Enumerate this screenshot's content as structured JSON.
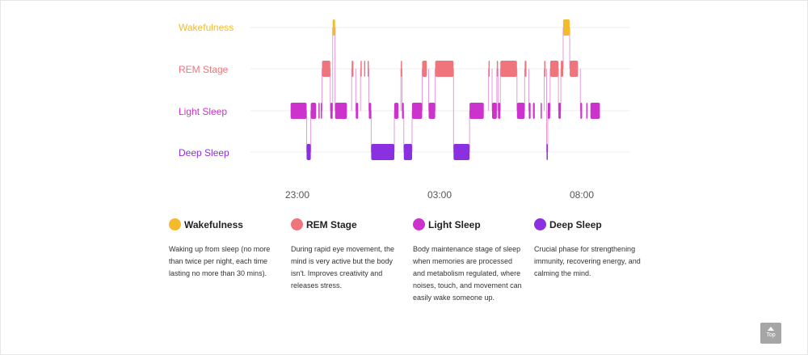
{
  "colors": {
    "wakefulness": "#f5b92c",
    "rem": "#f0747c",
    "light": "#cc33cc",
    "deep": "#8a30e0",
    "grid": "#ececec"
  },
  "chart_data": {
    "type": "hypnogram",
    "stages": [
      "Wakefulness",
      "REM Stage",
      "Light Sleep",
      "Deep Sleep"
    ],
    "x_ticks": [
      "23:00",
      "03:00",
      "08:00"
    ],
    "x_tick_minutes": [
      0,
      240,
      540
    ],
    "x_range_minutes": [
      -10,
      595
    ],
    "grid": true,
    "segments": [
      {
        "stage": "Light Sleep",
        "start": -10,
        "end": 17
      },
      {
        "stage": "Deep Sleep",
        "start": 17,
        "end": 24
      },
      {
        "stage": "Light Sleep",
        "start": 24,
        "end": 33
      },
      {
        "stage": "Light Sleep",
        "start": 37,
        "end": 39
      },
      {
        "stage": "Light Sleep",
        "start": 41,
        "end": 43
      },
      {
        "stage": "REM Stage",
        "start": 43,
        "end": 57
      },
      {
        "stage": "Light Sleep",
        "start": 57,
        "end": 61
      },
      {
        "stage": "Wakefulness",
        "start": 61,
        "end": 65
      },
      {
        "stage": "Light Sleep",
        "start": 65,
        "end": 85
      },
      {
        "stage": "REM Stage",
        "start": 93,
        "end": 96
      },
      {
        "stage": "Light Sleep",
        "start": 100,
        "end": 104
      },
      {
        "stage": "REM Stage",
        "start": 108,
        "end": 110
      },
      {
        "stage": "REM Stage",
        "start": 114,
        "end": 116
      },
      {
        "stage": "REM Stage",
        "start": 120,
        "end": 122
      },
      {
        "stage": "Light Sleep",
        "start": 122,
        "end": 126
      },
      {
        "stage": "Deep Sleep",
        "start": 126,
        "end": 165
      },
      {
        "stage": "Light Sleep",
        "start": 165,
        "end": 172
      },
      {
        "stage": "REM Stage",
        "start": 176,
        "end": 178
      },
      {
        "stage": "Light Sleep",
        "start": 178,
        "end": 181
      },
      {
        "stage": "Deep Sleep",
        "start": 181,
        "end": 195
      },
      {
        "stage": "Light Sleep",
        "start": 195,
        "end": 212
      },
      {
        "stage": "REM Stage",
        "start": 212,
        "end": 220
      },
      {
        "stage": "Light Sleep",
        "start": 223,
        "end": 234
      },
      {
        "stage": "REM Stage",
        "start": 234,
        "end": 265
      },
      {
        "stage": "Deep Sleep",
        "start": 265,
        "end": 292
      },
      {
        "stage": "Light Sleep",
        "start": 292,
        "end": 316
      },
      {
        "stage": "REM Stage",
        "start": 324,
        "end": 326
      },
      {
        "stage": "Light Sleep",
        "start": 330,
        "end": 338
      },
      {
        "stage": "REM Stage",
        "start": 338,
        "end": 340
      },
      {
        "stage": "Light Sleep",
        "start": 340,
        "end": 344
      },
      {
        "stage": "REM Stage",
        "start": 344,
        "end": 372
      },
      {
        "stage": "Light Sleep",
        "start": 372,
        "end": 385
      },
      {
        "stage": "REM Stage",
        "start": 385,
        "end": 388
      },
      {
        "stage": "Light Sleep",
        "start": 392,
        "end": 395
      },
      {
        "stage": "Light Sleep",
        "start": 399,
        "end": 402
      },
      {
        "stage": "Light Sleep",
        "start": 412,
        "end": 414
      },
      {
        "stage": "REM Stage",
        "start": 418,
        "end": 420
      },
      {
        "stage": "Deep Sleep",
        "start": 422,
        "end": 424
      },
      {
        "stage": "Light Sleep",
        "start": 424,
        "end": 428
      },
      {
        "stage": "REM Stage",
        "start": 428,
        "end": 442
      },
      {
        "stage": "Light Sleep",
        "start": 442,
        "end": 446
      },
      {
        "stage": "REM Stage",
        "start": 446,
        "end": 450
      },
      {
        "stage": "Wakefulness",
        "start": 450,
        "end": 461
      },
      {
        "stage": "REM Stage",
        "start": 461,
        "end": 475
      },
      {
        "stage": "Light Sleep",
        "start": 479,
        "end": 482
      },
      {
        "stage": "Light Sleep",
        "start": 489,
        "end": 491
      },
      {
        "stage": "Light Sleep",
        "start": 496,
        "end": 512
      }
    ]
  },
  "legend": [
    {
      "key": "wakefulness",
      "name": "Wakefulness",
      "desc": "Waking up from sleep (no more than twice per night, each time lasting no more than 30 mins)."
    },
    {
      "key": "rem",
      "name": "REM Stage",
      "desc": "During rapid eye movement, the mind is very active but the body isn't. Improves creativity and releases stress."
    },
    {
      "key": "light",
      "name": "Light Sleep",
      "desc": "Body maintenance stage of sleep when memories are processed and metabolism regulated, where noises, touch, and movement can easily wake someone up."
    },
    {
      "key": "deep",
      "name": "Deep Sleep",
      "desc": "Crucial phase for strengthening immunity, recovering energy, and calming the mind."
    }
  ],
  "top_button": {
    "label": "Top",
    "icon": "arrow-up-icon"
  }
}
